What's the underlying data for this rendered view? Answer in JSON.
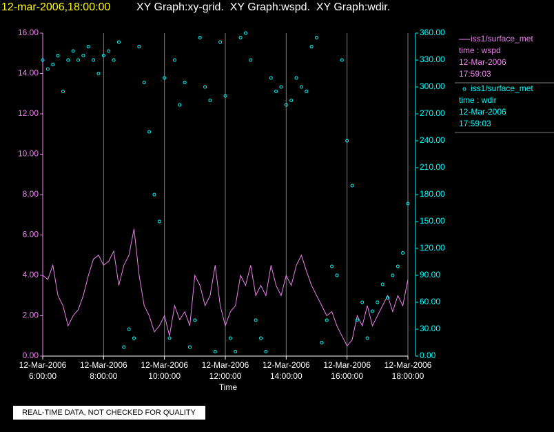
{
  "chart_data": {
    "type": "line",
    "title": "12-mar-2006,18:00:00",
    "subtitle": "XY Graph:xy-grid.  XY Graph:wspd.  XY Graph:wdir.",
    "xlabel": "Time",
    "footer": "REAL-TIME DATA, NOT CHECKED FOR QUALITY",
    "grid": true,
    "x": [
      "2006-03-12T06:00",
      "2006-03-12T06:10",
      "2006-03-12T06:20",
      "2006-03-12T06:30",
      "2006-03-12T06:40",
      "2006-03-12T06:50",
      "2006-03-12T07:00",
      "2006-03-12T07:10",
      "2006-03-12T07:20",
      "2006-03-12T07:30",
      "2006-03-12T07:40",
      "2006-03-12T07:50",
      "2006-03-12T08:00",
      "2006-03-12T08:10",
      "2006-03-12T08:20",
      "2006-03-12T08:30",
      "2006-03-12T08:40",
      "2006-03-12T08:50",
      "2006-03-12T09:00",
      "2006-03-12T09:10",
      "2006-03-12T09:20",
      "2006-03-12T09:30",
      "2006-03-12T09:40",
      "2006-03-12T09:50",
      "2006-03-12T10:00",
      "2006-03-12T10:10",
      "2006-03-12T10:20",
      "2006-03-12T10:30",
      "2006-03-12T10:40",
      "2006-03-12T10:50",
      "2006-03-12T11:00",
      "2006-03-12T11:10",
      "2006-03-12T11:20",
      "2006-03-12T11:30",
      "2006-03-12T11:40",
      "2006-03-12T11:50",
      "2006-03-12T12:00",
      "2006-03-12T12:10",
      "2006-03-12T12:20",
      "2006-03-12T12:30",
      "2006-03-12T12:40",
      "2006-03-12T12:50",
      "2006-03-12T13:00",
      "2006-03-12T13:10",
      "2006-03-12T13:20",
      "2006-03-12T13:30",
      "2006-03-12T13:40",
      "2006-03-12T13:50",
      "2006-03-12T14:00",
      "2006-03-12T14:10",
      "2006-03-12T14:20",
      "2006-03-12T14:30",
      "2006-03-12T14:40",
      "2006-03-12T14:50",
      "2006-03-12T15:00",
      "2006-03-12T15:10",
      "2006-03-12T15:20",
      "2006-03-12T15:30",
      "2006-03-12T15:40",
      "2006-03-12T15:50",
      "2006-03-12T16:00",
      "2006-03-12T16:10",
      "2006-03-12T16:20",
      "2006-03-12T16:30",
      "2006-03-12T16:40",
      "2006-03-12T16:50",
      "2006-03-12T17:00",
      "2006-03-12T17:10",
      "2006-03-12T17:20",
      "2006-03-12T17:30",
      "2006-03-12T17:40",
      "2006-03-12T17:50",
      "2006-03-12T18:00"
    ],
    "series": [
      {
        "name": "iss1/surface_met",
        "legend_lines": [
          "time : wspd",
          "12-Mar-2006",
          "17:59:03"
        ],
        "color": "#ee82ee",
        "marker": "line",
        "values": [
          4.0,
          3.8,
          4.5,
          3.0,
          2.5,
          1.5,
          2.0,
          2.3,
          3.0,
          4.0,
          4.8,
          5.0,
          4.5,
          4.7,
          5.2,
          3.5,
          4.5,
          5.0,
          6.3,
          4.0,
          2.5,
          2.0,
          1.2,
          1.5,
          2.0,
          1.0,
          2.5,
          1.8,
          2.2,
          1.5,
          4.0,
          3.5,
          2.5,
          3.0,
          4.5,
          2.5,
          1.5,
          2.2,
          2.5,
          4.0,
          3.5,
          4.5,
          3.0,
          3.5,
          3.0,
          4.5,
          3.5,
          3.0,
          4.0,
          3.5,
          4.5,
          5.0,
          4.2,
          3.5,
          3.0,
          2.5,
          2.0,
          2.2,
          1.5,
          1.0,
          0.5,
          0.8,
          2.0,
          1.5,
          2.5,
          1.5,
          2.0,
          2.5,
          3.0,
          2.2,
          3.0,
          2.5,
          3.8
        ]
      },
      {
        "name": "iss1/surface_met",
        "legend_lines": [
          "time : wdir",
          "12-Mar-2006",
          "17:59:03"
        ],
        "color": "#00ffff",
        "marker": "circle",
        "axis": "y2",
        "values": [
          330,
          320,
          325,
          335,
          295,
          330,
          340,
          330,
          335,
          345,
          330,
          315,
          335,
          340,
          330,
          350,
          10,
          30,
          20,
          345,
          305,
          250,
          180,
          150,
          310,
          20,
          330,
          280,
          305,
          10,
          40,
          355,
          300,
          285,
          5,
          350,
          290,
          20,
          5,
          355,
          360,
          330,
          40,
          20,
          5,
          310,
          295,
          300,
          280,
          285,
          310,
          300,
          295,
          345,
          355,
          15,
          40,
          100,
          90,
          330,
          240,
          190,
          40,
          60,
          20,
          50,
          60,
          80,
          65,
          90,
          100,
          115,
          170
        ]
      }
    ],
    "xlim": [
      "2006-03-12T06:00",
      "2006-03-12T18:00"
    ],
    "xticks": [
      {
        "value": "2006-03-12T06:00",
        "label": "12-Mar-2006 6:00:00"
      },
      {
        "value": "2006-03-12T08:00",
        "label": "12-Mar-2006 8:00:00"
      },
      {
        "value": "2006-03-12T10:00",
        "label": "12-Mar-2006 10:00:00"
      },
      {
        "value": "2006-03-12T12:00",
        "label": "12-Mar-2006 12:00:00"
      },
      {
        "value": "2006-03-12T14:00",
        "label": "12-Mar-2006 14:00:00"
      },
      {
        "value": "2006-03-12T16:00",
        "label": "12-Mar-2006 16:00:00"
      },
      {
        "value": "2006-03-12T18:00",
        "label": "12-Mar-2006 18:00:00"
      }
    ],
    "ylim": [
      0,
      16
    ],
    "yticks": [
      {
        "value": 0,
        "label": "0.00"
      },
      {
        "value": 2,
        "label": "2.00"
      },
      {
        "value": 4,
        "label": "4.00"
      },
      {
        "value": 6,
        "label": "6.00"
      },
      {
        "value": 8,
        "label": "8.00"
      },
      {
        "value": 10,
        "label": "10.00"
      },
      {
        "value": 12,
        "label": "12.00"
      },
      {
        "value": 14,
        "label": "14.00"
      },
      {
        "value": 16,
        "label": "16.00"
      }
    ],
    "y2lim": [
      0,
      360
    ],
    "y2ticks": [
      {
        "value": 0,
        "label": "0.00"
      },
      {
        "value": 30,
        "label": "30.00"
      },
      {
        "value": 60,
        "label": "60.00"
      },
      {
        "value": 90,
        "label": "90.00"
      },
      {
        "value": 120,
        "label": "120.00"
      },
      {
        "value": 150,
        "label": "150.00"
      },
      {
        "value": 180,
        "label": "180.00"
      },
      {
        "value": 210,
        "label": "210.00"
      },
      {
        "value": 240,
        "label": "240.00"
      },
      {
        "value": 270,
        "label": "270.00"
      },
      {
        "value": 300,
        "label": "300.00"
      },
      {
        "value": 330,
        "label": "330.00"
      },
      {
        "value": 360,
        "label": "360.00"
      }
    ]
  }
}
